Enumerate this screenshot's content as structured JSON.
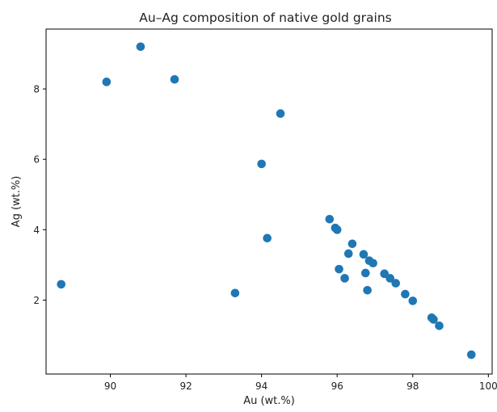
{
  "chart_data": {
    "type": "scatter",
    "title": "Au–Ag composition of native gold grains",
    "xlabel": "Au (wt.%)",
    "ylabel": "Ag (wt.%)",
    "xlim": [
      88.3,
      100.1
    ],
    "ylim": [
      -0.1,
      9.7
    ],
    "xticks": [
      90,
      92,
      94,
      96,
      98,
      100
    ],
    "yticks": [
      2,
      4,
      6,
      8
    ],
    "grid": false,
    "marker_color": "#1f77b4",
    "points": [
      {
        "x": 88.7,
        "y": 2.45
      },
      {
        "x": 89.9,
        "y": 8.2
      },
      {
        "x": 90.8,
        "y": 9.2
      },
      {
        "x": 91.7,
        "y": 8.27
      },
      {
        "x": 93.3,
        "y": 2.2
      },
      {
        "x": 94.0,
        "y": 5.87
      },
      {
        "x": 94.15,
        "y": 3.76
      },
      {
        "x": 94.5,
        "y": 7.3
      },
      {
        "x": 95.8,
        "y": 4.3
      },
      {
        "x": 95.95,
        "y": 4.05
      },
      {
        "x": 96.0,
        "y": 4.0
      },
      {
        "x": 96.05,
        "y": 2.88
      },
      {
        "x": 96.2,
        "y": 2.62
      },
      {
        "x": 96.3,
        "y": 3.32
      },
      {
        "x": 96.4,
        "y": 3.6
      },
      {
        "x": 96.7,
        "y": 3.3
      },
      {
        "x": 96.75,
        "y": 2.77
      },
      {
        "x": 96.8,
        "y": 2.28
      },
      {
        "x": 96.85,
        "y": 3.12
      },
      {
        "x": 96.95,
        "y": 3.05
      },
      {
        "x": 97.25,
        "y": 2.75
      },
      {
        "x": 97.4,
        "y": 2.62
      },
      {
        "x": 97.55,
        "y": 2.48
      },
      {
        "x": 97.8,
        "y": 2.17
      },
      {
        "x": 98.0,
        "y": 1.98
      },
      {
        "x": 98.5,
        "y": 1.5
      },
      {
        "x": 98.55,
        "y": 1.45
      },
      {
        "x": 98.7,
        "y": 1.27
      },
      {
        "x": 99.55,
        "y": 0.45
      }
    ]
  }
}
